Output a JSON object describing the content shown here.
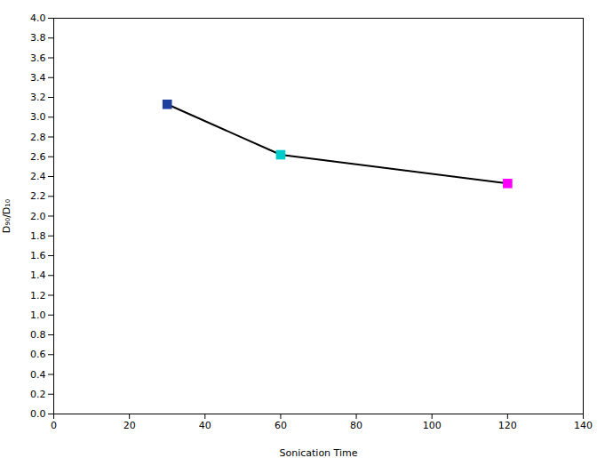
{
  "chart_data": {
    "type": "line",
    "x": [
      30,
      60,
      120
    ],
    "values": [
      3.13,
      2.62,
      2.33
    ],
    "color": "#000000",
    "colors": [
      "#1F3F9F",
      "#00CCCC",
      "#FF00FF"
    ],
    "marker": "square",
    "xlabel": "Sonication Time",
    "ylabel": "D₉₀/D₁₀",
    "xlim": [
      0,
      140
    ],
    "ylim": [
      0.0,
      4.0
    ],
    "xticks": [
      0,
      20,
      40,
      60,
      80,
      100,
      120,
      140
    ],
    "yticks": [
      {
        "value": 0,
        "label": "0.0"
      },
      0.2,
      0.4,
      0.6,
      0.8,
      {
        "value": 1,
        "label": "1.0"
      },
      1.2,
      1.4,
      1.6,
      1.8,
      {
        "value": 2,
        "label": "2.0"
      },
      2.2,
      2.4,
      2.6,
      2.8,
      {
        "value": 3,
        "label": "3.0"
      },
      3.2,
      3.4,
      3.6,
      3.8,
      {
        "value": 4,
        "label": "4.0"
      }
    ],
    "grid": false
  }
}
